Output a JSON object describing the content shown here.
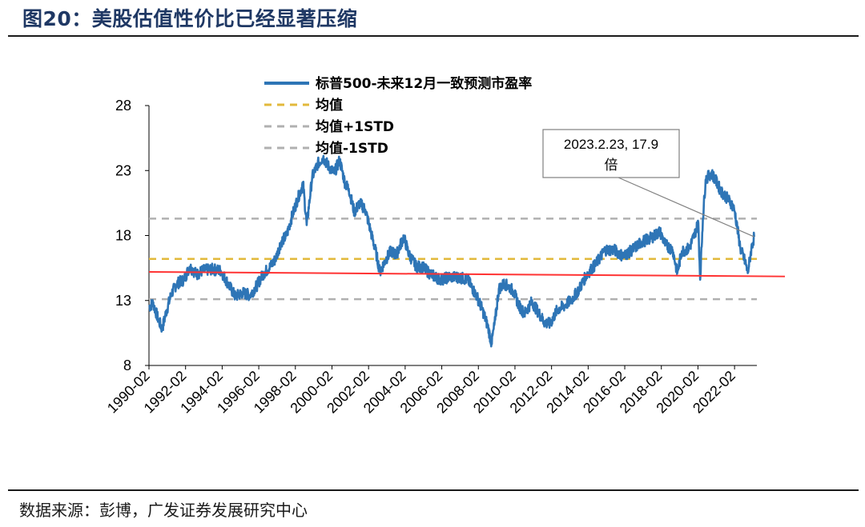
{
  "figure": {
    "title": "图20：美股估值性价比已经显著压缩",
    "source": "数据来源：彭博，广发证券发展研究中心"
  },
  "chart_data": {
    "type": "line",
    "title": "",
    "xlabel": "",
    "ylabel": "",
    "ylim": [
      8,
      28
    ],
    "yticks": [
      "8",
      "13",
      "18",
      "23",
      "28"
    ],
    "ytick_values": [
      8,
      13,
      18,
      23,
      28
    ],
    "xlim": [
      1990.08,
      2023.3
    ],
    "xticks": [
      "1990-02",
      "1992-02",
      "1994-02",
      "1996-02",
      "1998-02",
      "2000-02",
      "2002-02",
      "2004-02",
      "2006-02",
      "2008-02",
      "2010-02",
      "2012-02",
      "2014-02",
      "2016-02",
      "2018-02",
      "2020-02",
      "2022-02"
    ],
    "xtick_values": [
      1990.08,
      1992.08,
      1994.08,
      1996.08,
      1998.08,
      2000.08,
      2002.08,
      2004.08,
      2006.08,
      2008.08,
      2010.08,
      2012.08,
      2014.08,
      2016.08,
      2018.08,
      2020.08,
      2022.08
    ],
    "series": [
      {
        "name": "标普500-未来12月一致预测市盈率",
        "color": "#2e75b6",
        "x": [
          1990.08,
          1990.3,
          1990.6,
          1990.8,
          1991.0,
          1991.3,
          1991.6,
          1992.0,
          1992.3,
          1992.7,
          1993.0,
          1993.5,
          1994.0,
          1994.4,
          1994.8,
          1995.2,
          1995.6,
          1996.0,
          1996.3,
          1996.7,
          1997.0,
          1997.3,
          1997.6,
          1997.9,
          1998.2,
          1998.5,
          1998.7,
          1999.0,
          1999.3,
          1999.6,
          1999.9,
          2000.2,
          2000.5,
          2000.8,
          2001.0,
          2001.3,
          2001.6,
          2001.9,
          2002.2,
          2002.5,
          2002.7,
          2003.0,
          2003.3,
          2003.6,
          2004.0,
          2004.3,
          2004.7,
          2005.0,
          2005.5,
          2006.0,
          2006.5,
          2007.0,
          2007.5,
          2008.0,
          2008.3,
          2008.6,
          2008.8,
          2009.0,
          2009.2,
          2009.5,
          2009.8,
          2010.0,
          2010.3,
          2010.6,
          2011.0,
          2011.4,
          2011.7,
          2012.0,
          2012.4,
          2012.8,
          2013.2,
          2013.6,
          2014.0,
          2014.5,
          2015.0,
          2015.5,
          2016.0,
          2016.5,
          2017.0,
          2017.5,
          2018.0,
          2018.3,
          2018.7,
          2018.95,
          2019.2,
          2019.6,
          2019.9,
          2020.1,
          2020.2,
          2020.35,
          2020.5,
          2020.8,
          2021.0,
          2021.3,
          2021.6,
          2021.9,
          2022.1,
          2022.4,
          2022.7,
          2022.8,
          2023.0,
          2023.15
        ],
        "values": [
          12.5,
          12.8,
          11.5,
          10.8,
          12.0,
          13.5,
          14.3,
          14.6,
          15.6,
          15.0,
          15.3,
          15.4,
          15.3,
          14.3,
          13.3,
          13.6,
          13.4,
          14.2,
          15.0,
          15.6,
          16.2,
          17.5,
          18.0,
          19.5,
          20.8,
          22.0,
          18.8,
          22.5,
          23.5,
          24.0,
          23.3,
          22.8,
          23.8,
          22.0,
          21.6,
          19.8,
          20.5,
          20.0,
          18.3,
          16.6,
          15.2,
          16.1,
          16.8,
          16.5,
          17.9,
          16.5,
          15.6,
          15.6,
          15.0,
          14.6,
          14.8,
          14.8,
          14.6,
          13.3,
          12.3,
          11.0,
          9.7,
          11.5,
          13.9,
          14.3,
          14.0,
          13.7,
          12.6,
          12.0,
          12.9,
          12.0,
          11.3,
          11.2,
          12.3,
          12.6,
          13.1,
          13.9,
          15.0,
          15.8,
          16.9,
          16.9,
          16.4,
          16.9,
          17.5,
          17.8,
          18.3,
          17.3,
          16.9,
          15.1,
          16.8,
          17.0,
          18.1,
          19.0,
          14.6,
          19.3,
          22.3,
          22.8,
          22.4,
          21.5,
          21.0,
          20.5,
          19.8,
          17.0,
          15.8,
          15.1,
          17.0,
          17.9
        ]
      }
    ],
    "reference_lines": [
      {
        "name": "均值",
        "value": 16.2,
        "color": "#e2b93b",
        "style": "dashed"
      },
      {
        "name": "均值+1STD",
        "value": 19.3,
        "color": "#b0b0b0",
        "style": "dashed"
      },
      {
        "name": "均值-1STD",
        "value": 13.1,
        "color": "#b0b0b0",
        "style": "dashed"
      }
    ],
    "trend_line": {
      "color": "#ff3333",
      "from": [
        1990.08,
        15.2
      ],
      "to": [
        2025.0,
        14.85
      ]
    },
    "annotation": {
      "text_line1": "2023.2.23, 17.9",
      "text_line2": "倍",
      "x": 2023.15,
      "y": 17.9
    },
    "legend_position": "top-center"
  }
}
